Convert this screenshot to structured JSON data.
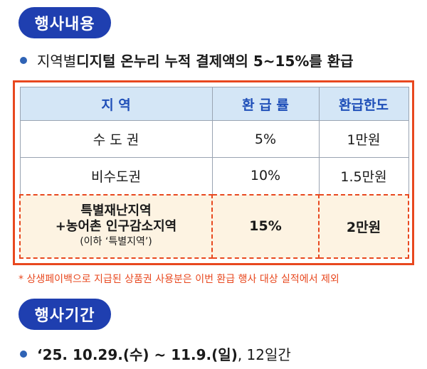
{
  "event_content": {
    "heading": "행사내용",
    "description_prefix": "지역별 ",
    "description_bold": "디지털 온누리 누적 결제액의 5~15%를 환급"
  },
  "table": {
    "headers": {
      "region": "지  역",
      "rate": "환 급 률",
      "limit": "환급한도"
    },
    "rows": [
      {
        "region": "수 도 권",
        "rate": "5%",
        "limit": "1만원"
      },
      {
        "region": "비수도권",
        "rate": "10%",
        "limit": "1.5만원"
      }
    ],
    "special": {
      "region_line1": "특별재난지역",
      "region_line2": "+농어촌 인구감소지역",
      "region_note": "(이하 ‘특별지역’)",
      "rate": "15%",
      "limit": "2만원"
    }
  },
  "footnote": "* 상생페이백으로 지급된 상품권 사용분은 이번 환급 행사 대상 실적에서 제외",
  "event_period": {
    "heading": "행사기간",
    "date_bold": "‘25. 10.29.(수) ~ 11.9.(일)",
    "duration": ", 12일간"
  },
  "colors": {
    "pill": "#1f3fb0",
    "bullet": "#2f63b5",
    "highlight_border": "#e8481f",
    "header_bg": "#d4e6f6",
    "special_bg": "#fdf3e2"
  }
}
